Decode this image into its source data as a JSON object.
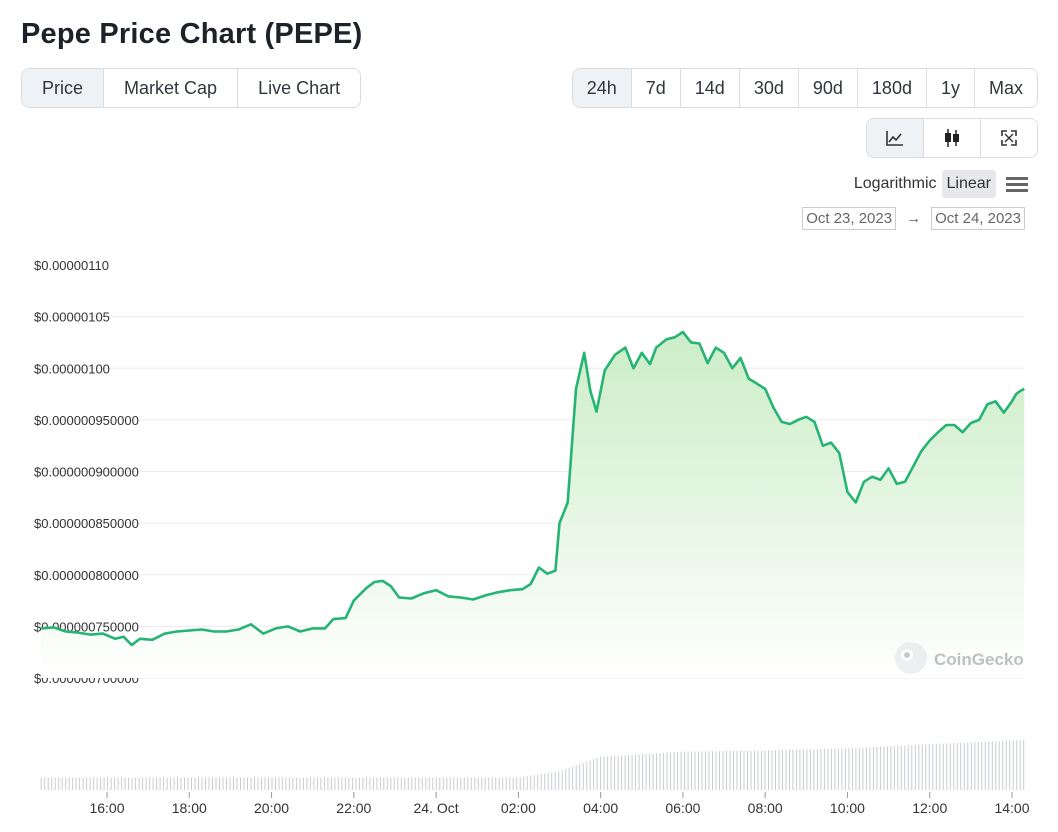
{
  "header": {
    "title": "Pepe Price Chart (PEPE)"
  },
  "tabs": [
    {
      "label": "Price",
      "active": true
    },
    {
      "label": "Market Cap",
      "active": false
    },
    {
      "label": "Live Chart",
      "active": false
    }
  ],
  "ranges": [
    {
      "label": "24h",
      "active": true
    },
    {
      "label": "7d",
      "active": false
    },
    {
      "label": "14d",
      "active": false
    },
    {
      "label": "30d",
      "active": false
    },
    {
      "label": "90d",
      "active": false
    },
    {
      "label": "180d",
      "active": false
    },
    {
      "label": "1y",
      "active": false
    },
    {
      "label": "Max",
      "active": false
    }
  ],
  "chart_types": [
    {
      "icon": "line-chart-icon",
      "active": true
    },
    {
      "icon": "candlestick-icon",
      "active": false
    },
    {
      "icon": "fullscreen-icon",
      "active": false
    }
  ],
  "scale": {
    "log_label": "Logarithmic",
    "linear_label": "Linear",
    "active": "Linear"
  },
  "date_range": {
    "from": "Oct 23, 2023",
    "arrow": "→",
    "to": "Oct 24, 2023"
  },
  "watermark": "CoinGecko",
  "colors": {
    "line": "#25b474",
    "fill_top": "#c9ecc4",
    "fill_bottom": "#ffffff",
    "volume": "#c8ccd0",
    "grid": "#ececec"
  },
  "chart_data": {
    "type": "area",
    "yscale": "linear",
    "ylim": [
      7e-07,
      1.1e-06
    ],
    "xlim": [
      14.4,
      38.3
    ],
    "yticks": [
      {
        "value": 1.1e-06,
        "label": "$0.00000110"
      },
      {
        "value": 1.05e-06,
        "label": "$0.00000105"
      },
      {
        "value": 1e-06,
        "label": "$0.00000100"
      },
      {
        "value": 9.5e-07,
        "label": "$0.000000950000"
      },
      {
        "value": 9e-07,
        "label": "$0.000000900000"
      },
      {
        "value": 8.5e-07,
        "label": "$0.000000850000"
      },
      {
        "value": 8e-07,
        "label": "$0.000000800000"
      },
      {
        "value": 7.5e-07,
        "label": "$0.000000750000"
      },
      {
        "value": 7e-07,
        "label": "$0.000000700000"
      }
    ],
    "xticks": [
      {
        "hour": 16,
        "label": "16:00"
      },
      {
        "hour": 18,
        "label": "18:00"
      },
      {
        "hour": 20,
        "label": "20:00"
      },
      {
        "hour": 22,
        "label": "22:00"
      },
      {
        "hour": 24,
        "label": "24. Oct"
      },
      {
        "hour": 26,
        "label": "02:00"
      },
      {
        "hour": 28,
        "label": "04:00"
      },
      {
        "hour": 30,
        "label": "06:00"
      },
      {
        "hour": 32,
        "label": "08:00"
      },
      {
        "hour": 34,
        "label": "10:00"
      },
      {
        "hour": 36,
        "label": "12:00"
      },
      {
        "hour": 38,
        "label": "14:00"
      }
    ],
    "series": [
      {
        "values": [
          [
            14.4,
            7.48e-07
          ],
          [
            14.7,
            7.49e-07
          ],
          [
            15.0,
            7.45e-07
          ],
          [
            15.3,
            7.44e-07
          ],
          [
            15.6,
            7.42e-07
          ],
          [
            15.9,
            7.43e-07
          ],
          [
            16.2,
            7.38e-07
          ],
          [
            16.4,
            7.4e-07
          ],
          [
            16.6,
            7.32e-07
          ],
          [
            16.8,
            7.38e-07
          ],
          [
            17.1,
            7.37e-07
          ],
          [
            17.4,
            7.43e-07
          ],
          [
            17.7,
            7.45e-07
          ],
          [
            18.0,
            7.46e-07
          ],
          [
            18.3,
            7.47e-07
          ],
          [
            18.6,
            7.45e-07
          ],
          [
            18.9,
            7.45e-07
          ],
          [
            19.2,
            7.47e-07
          ],
          [
            19.5,
            7.52e-07
          ],
          [
            19.8,
            7.43e-07
          ],
          [
            20.1,
            7.48e-07
          ],
          [
            20.4,
            7.5e-07
          ],
          [
            20.7,
            7.45e-07
          ],
          [
            21.0,
            7.48e-07
          ],
          [
            21.3,
            7.48e-07
          ],
          [
            21.5,
            7.57e-07
          ],
          [
            21.8,
            7.58e-07
          ],
          [
            22.0,
            7.75e-07
          ],
          [
            22.3,
            7.87e-07
          ],
          [
            22.5,
            7.93e-07
          ],
          [
            22.7,
            7.94e-07
          ],
          [
            22.9,
            7.89e-07
          ],
          [
            23.1,
            7.78e-07
          ],
          [
            23.4,
            7.77e-07
          ],
          [
            23.7,
            7.82e-07
          ],
          [
            24.0,
            7.85e-07
          ],
          [
            24.3,
            7.79e-07
          ],
          [
            24.6,
            7.78e-07
          ],
          [
            24.9,
            7.76e-07
          ],
          [
            25.2,
            7.8e-07
          ],
          [
            25.5,
            7.83e-07
          ],
          [
            25.8,
            7.85e-07
          ],
          [
            26.1,
            7.86e-07
          ],
          [
            26.3,
            7.91e-07
          ],
          [
            26.5,
            8.07e-07
          ],
          [
            26.7,
            8.01e-07
          ],
          [
            26.9,
            8.04e-07
          ],
          [
            27.0,
            8.5e-07
          ],
          [
            27.2,
            8.7e-07
          ],
          [
            27.4,
            9.8e-07
          ],
          [
            27.6,
            1.015e-06
          ],
          [
            27.75,
            9.78e-07
          ],
          [
            27.9,
            9.58e-07
          ],
          [
            28.1,
            9.98e-07
          ],
          [
            28.35,
            1.013e-06
          ],
          [
            28.6,
            1.02e-06
          ],
          [
            28.8,
            1e-06
          ],
          [
            29.0,
            1.015e-06
          ],
          [
            29.2,
            1.004e-06
          ],
          [
            29.35,
            1.02e-06
          ],
          [
            29.6,
            1.028e-06
          ],
          [
            29.8,
            1.03e-06
          ],
          [
            30.0,
            1.035e-06
          ],
          [
            30.2,
            1.025e-06
          ],
          [
            30.4,
            1.024e-06
          ],
          [
            30.6,
            1.005e-06
          ],
          [
            30.8,
            1.02e-06
          ],
          [
            31.0,
            1.015e-06
          ],
          [
            31.2,
            1e-06
          ],
          [
            31.4,
            1.01e-06
          ],
          [
            31.6,
            9.9e-07
          ],
          [
            31.8,
            9.85e-07
          ],
          [
            32.0,
            9.8e-07
          ],
          [
            32.2,
            9.62e-07
          ],
          [
            32.4,
            9.48e-07
          ],
          [
            32.6,
            9.46e-07
          ],
          [
            32.8,
            9.5e-07
          ],
          [
            33.0,
            9.53e-07
          ],
          [
            33.2,
            9.48e-07
          ],
          [
            33.4,
            9.25e-07
          ],
          [
            33.6,
            9.28e-07
          ],
          [
            33.8,
            9.18e-07
          ],
          [
            34.0,
            8.8e-07
          ],
          [
            34.2,
            8.7e-07
          ],
          [
            34.4,
            8.9e-07
          ],
          [
            34.6,
            8.95e-07
          ],
          [
            34.8,
            8.92e-07
          ],
          [
            35.0,
            9.03e-07
          ],
          [
            35.2,
            8.88e-07
          ],
          [
            35.4,
            8.9e-07
          ],
          [
            35.6,
            9.05e-07
          ],
          [
            35.8,
            9.2e-07
          ],
          [
            36.0,
            9.3e-07
          ],
          [
            36.2,
            9.38e-07
          ],
          [
            36.4,
            9.45e-07
          ],
          [
            36.6,
            9.45e-07
          ],
          [
            36.8,
            9.38e-07
          ],
          [
            37.0,
            9.47e-07
          ],
          [
            37.2,
            9.5e-07
          ],
          [
            37.4,
            9.65e-07
          ],
          [
            37.6,
            9.68e-07
          ],
          [
            37.8,
            9.57e-07
          ],
          [
            38.0,
            9.68e-07
          ],
          [
            38.1,
            9.75e-07
          ],
          [
            38.2,
            9.78e-07
          ],
          [
            38.3,
            9.8e-07
          ]
        ]
      }
    ],
    "volume": {
      "description": "relative volume bars at chart bottom",
      "levels": [
        [
          14.4,
          0.3
        ],
        [
          26.0,
          0.3
        ],
        [
          27.0,
          0.45
        ],
        [
          28.0,
          0.8
        ],
        [
          30.0,
          0.92
        ],
        [
          32.0,
          0.95
        ],
        [
          34.0,
          1.0
        ],
        [
          36.0,
          1.1
        ],
        [
          38.3,
          1.2
        ]
      ]
    },
    "grid": true,
    "legend": "none"
  }
}
